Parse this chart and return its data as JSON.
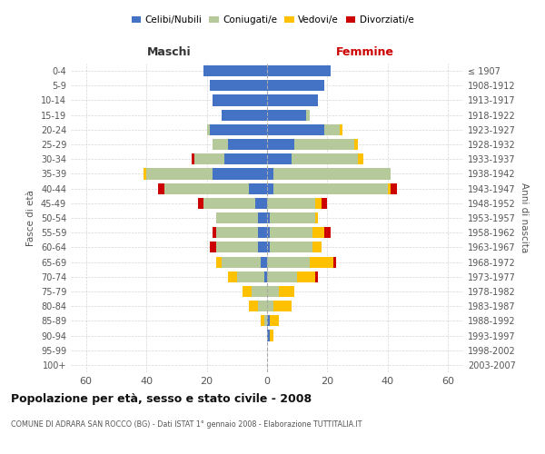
{
  "age_groups": [
    "0-4",
    "5-9",
    "10-14",
    "15-19",
    "20-24",
    "25-29",
    "30-34",
    "35-39",
    "40-44",
    "45-49",
    "50-54",
    "55-59",
    "60-64",
    "65-69",
    "70-74",
    "75-79",
    "80-84",
    "85-89",
    "90-94",
    "95-99",
    "100+"
  ],
  "birth_years": [
    "2003-2007",
    "1998-2002",
    "1993-1997",
    "1988-1992",
    "1983-1987",
    "1978-1982",
    "1973-1977",
    "1968-1972",
    "1963-1967",
    "1958-1962",
    "1953-1957",
    "1948-1952",
    "1943-1947",
    "1938-1942",
    "1933-1937",
    "1928-1932",
    "1923-1927",
    "1918-1922",
    "1913-1917",
    "1908-1912",
    "≤ 1907"
  ],
  "maschi": {
    "celibi": [
      21,
      19,
      18,
      15,
      19,
      13,
      14,
      18,
      6,
      4,
      3,
      3,
      3,
      2,
      1,
      0,
      0,
      0,
      0,
      0,
      0
    ],
    "coniugati": [
      0,
      0,
      0,
      0,
      1,
      5,
      10,
      22,
      28,
      17,
      14,
      14,
      14,
      13,
      9,
      5,
      3,
      1,
      0,
      0,
      0
    ],
    "vedovi": [
      0,
      0,
      0,
      0,
      0,
      0,
      0,
      1,
      0,
      0,
      0,
      0,
      0,
      2,
      3,
      3,
      3,
      1,
      0,
      0,
      0
    ],
    "divorziati": [
      0,
      0,
      0,
      0,
      0,
      0,
      1,
      0,
      2,
      2,
      0,
      1,
      2,
      0,
      0,
      0,
      0,
      0,
      0,
      0,
      0
    ]
  },
  "femmine": {
    "nubili": [
      21,
      19,
      17,
      13,
      19,
      9,
      8,
      2,
      2,
      0,
      1,
      1,
      1,
      0,
      0,
      0,
      0,
      1,
      1,
      0,
      0
    ],
    "coniugate": [
      0,
      0,
      0,
      1,
      5,
      20,
      22,
      39,
      38,
      16,
      15,
      14,
      14,
      14,
      10,
      4,
      2,
      0,
      0,
      0,
      0
    ],
    "vedove": [
      0,
      0,
      0,
      0,
      1,
      1,
      2,
      0,
      1,
      2,
      1,
      4,
      3,
      8,
      6,
      5,
      6,
      3,
      1,
      0,
      0
    ],
    "divorziate": [
      0,
      0,
      0,
      0,
      0,
      0,
      0,
      0,
      2,
      2,
      0,
      2,
      0,
      1,
      1,
      0,
      0,
      0,
      0,
      0,
      0
    ]
  },
  "colors": {
    "celibi": "#4472c4",
    "coniugati": "#b5c99a",
    "vedovi": "#ffc000",
    "divorziati": "#cc0000"
  },
  "xlim": 65,
  "title": "Popolazione per età, sesso e stato civile - 2008",
  "subtitle": "COMUNE DI ADRARA SAN ROCCO (BG) - Dati ISTAT 1° gennaio 2008 - Elaborazione TUTTITALIA.IT",
  "ylabel_left": "Fasce di età",
  "ylabel_right": "Anni di nascita",
  "xlabel_left": "Maschi",
  "xlabel_right": "Femmine",
  "background_color": "#ffffff",
  "grid_color": "#cccccc"
}
